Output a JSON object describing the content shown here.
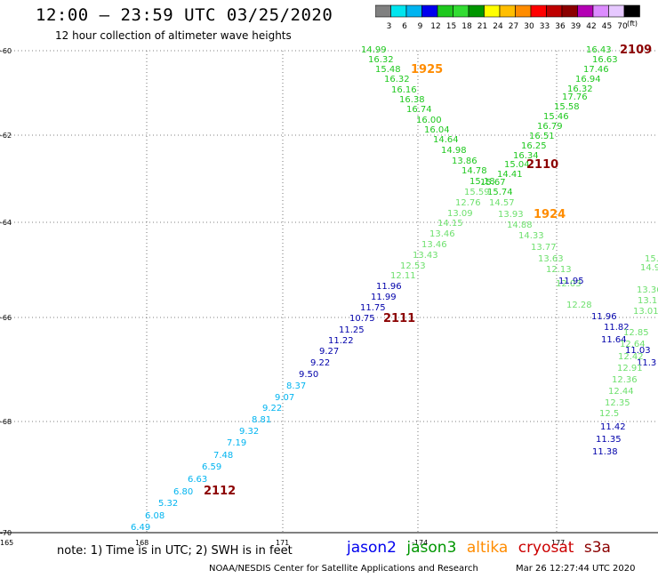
{
  "header": {
    "title": "12:00 – 23:59 UTC 03/25/2020",
    "subtitle": "12 hour collection of altimeter wave heights"
  },
  "color_scale": {
    "unit": "(ft)",
    "bins": [
      {
        "label": "3",
        "color": "#808080"
      },
      {
        "label": "6",
        "color": "#00e5ee"
      },
      {
        "label": "9",
        "color": "#00b4f0"
      },
      {
        "label": "12",
        "color": "#0000ee"
      },
      {
        "label": "15",
        "color": "#1ec81e"
      },
      {
        "label": "18",
        "color": "#32dc32"
      },
      {
        "label": "21",
        "color": "#009600"
      },
      {
        "label": "24",
        "color": "#ffff00"
      },
      {
        "label": "27",
        "color": "#ffbe00"
      },
      {
        "label": "30",
        "color": "#ff8c00"
      },
      {
        "label": "33",
        "color": "#ff0000"
      },
      {
        "label": "36",
        "color": "#be0000"
      },
      {
        "label": "39",
        "color": "#8b0000"
      },
      {
        "label": "42",
        "color": "#b400b4"
      },
      {
        "label": "45",
        "color": "#dc8cff"
      },
      {
        "label": "70",
        "color": "#e6c8ff"
      },
      {
        "label": "",
        "color": "#000000"
      }
    ]
  },
  "map": {
    "lat_labels": [
      "-60",
      "-62",
      "-64",
      "-66",
      "-68",
      "-70"
    ],
    "lon_labels": [
      "165",
      "168",
      "171",
      "-174",
      "177"
    ]
  },
  "chart_data": {
    "type": "scatter",
    "pass_labels": [
      {
        "text": "1925",
        "satellite": "altika"
      },
      {
        "text": "2109",
        "satellite": "cryosat"
      },
      {
        "text": "2110",
        "satellite": "cryosat"
      },
      {
        "text": "1924",
        "satellite": "altika"
      },
      {
        "text": "2111",
        "satellite": "cryosat"
      },
      {
        "text": "2112",
        "satellite": "cryosat"
      }
    ],
    "wave_heights": [
      "14.99",
      "16.32",
      "15.48",
      "16.32",
      "16.16",
      "16.38",
      "16.74",
      "16.00",
      "16.04",
      "14.64",
      "14.98",
      "13.86",
      "14.78",
      "15.18",
      "15.59",
      "12.76",
      "13.09",
      "14.15",
      "13.46",
      "13.46",
      "13.43",
      "12.53",
      "12.11",
      "16.43",
      "16.63",
      "17.46",
      "16.94",
      "16.32",
      "17.76",
      "15.58",
      "15.46",
      "16.79",
      "16.51",
      "16.25",
      "16.34",
      "15.04",
      "14.41",
      "15.67",
      "15.74",
      "14.57",
      "13.93",
      "14.88",
      "14.33",
      "13.77",
      "13.63",
      "12.13",
      "12.03",
      "12.28",
      "11.96",
      "11.99",
      "11.75",
      "10.75",
      "11.25",
      "11.22",
      "9.27",
      "9.22",
      "9.50",
      "8.37",
      "9.07",
      "9.22",
      "8.81",
      "9.32",
      "7.19",
      "7.48",
      "6.59",
      "6.63",
      "6.80",
      "5.32",
      "6.08",
      "6.49",
      "11.95",
      "11.96",
      "11.82",
      "11.64",
      "11.03",
      "11.3",
      "11.42",
      "11.35",
      "11.38",
      "12.85",
      "12.64",
      "12.42",
      "12.91",
      "12.36",
      "12.44",
      "12.35",
      "12.5",
      "13.01",
      "13.36",
      "13.13",
      "14.9",
      "15."
    ]
  },
  "legend": {
    "jason2": {
      "label": "jason2",
      "color": "#0000ee"
    },
    "jason3": {
      "label": "jason3",
      "color": "#009600"
    },
    "altika": {
      "label": "altika",
      "color": "#ff8c00"
    },
    "cryosat": {
      "label": "cryosat",
      "color": "#cc0000"
    },
    "s3a": {
      "label": "s3a",
      "color": "#8b0000"
    }
  },
  "footer": {
    "note": "note:  1) Time is in UTC;  2) SWH is in feet",
    "credit": "NOAA/NESDIS Center for Satellite Applications and Research",
    "timestamp": "Mar 26 12:27:44 UTC 2020"
  }
}
